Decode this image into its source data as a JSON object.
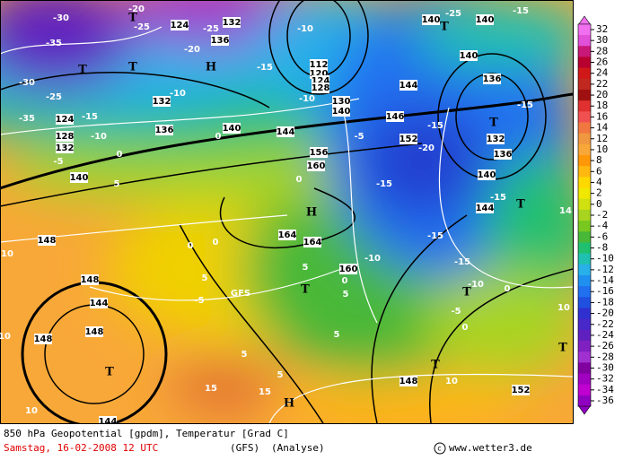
{
  "map_labels": [
    "-30",
    "-20",
    "-25",
    "124",
    "132",
    "-25",
    "-20",
    "136",
    "T",
    "T",
    "T",
    "H",
    "-35",
    "-30",
    "-25",
    "-35",
    "124",
    "-15",
    "128",
    "132",
    "-10",
    "-5",
    "140",
    "5",
    "0",
    "136",
    "-10",
    "132",
    "140",
    "0",
    "144",
    "-10",
    "-15",
    "112",
    "120",
    "124",
    "128",
    "-10",
    "130",
    "140",
    "-5",
    "146",
    "152",
    "144",
    "-20",
    "-15",
    "140",
    "-25",
    "140",
    "-15",
    "T",
    "140",
    "136",
    "-15",
    "T",
    "132",
    "136",
    "140",
    "-15",
    "144",
    "T",
    "-15",
    "156",
    "160",
    "0",
    "H",
    "164",
    "164",
    "-15",
    "-15",
    "5",
    "160",
    "-10",
    "T",
    "0",
    "5",
    "0",
    "-10",
    "T",
    "-5",
    "0",
    "148",
    "10",
    "0",
    "0",
    "-5",
    "148",
    "144",
    "148",
    "T",
    "144",
    "10",
    "148",
    "10",
    "GFS",
    "T",
    "148",
    "10",
    "152",
    "T",
    "10",
    "14",
    "15",
    "15",
    "H",
    "5",
    "5",
    "5",
    "5"
  ],
  "legend": {
    "values": [
      32,
      30,
      28,
      26,
      24,
      22,
      20,
      18,
      16,
      14,
      12,
      10,
      8,
      6,
      4,
      2,
      0,
      -2,
      -4,
      -6,
      -8,
      -10,
      -12,
      -14,
      -16,
      -18,
      -20,
      -22,
      -24,
      -26,
      -28,
      -30,
      -32,
      -34,
      -36
    ],
    "colors": [
      "#f070f0",
      "#e050d8",
      "#c81878",
      "#b80030",
      "#d01818",
      "#c02820",
      "#a01010",
      "#e03030",
      "#f05050",
      "#f07840",
      "#f09840",
      "#f8a838",
      "#ff9808",
      "#ffb810",
      "#ffd800",
      "#f0e800",
      "#d0e010",
      "#a8d420",
      "#78c820",
      "#48b838",
      "#20c070",
      "#20c0b0",
      "#28b0e8",
      "#2090f0",
      "#2070f0",
      "#2050e0",
      "#3030d0",
      "#4828c8",
      "#6020c0",
      "#8020c0",
      "#a030d0",
      "#8000a0",
      "#a000c0",
      "#c000d0",
      "#9000c0"
    ]
  },
  "footer": {
    "title": "850 hPa Geopotential [gpdm], Temperatur [Grad C]",
    "date": "Samstag, 16-02-2008  12 UTC",
    "model": "(GFS)",
    "run": "(Analyse)",
    "source": "www.wetter3.de"
  }
}
